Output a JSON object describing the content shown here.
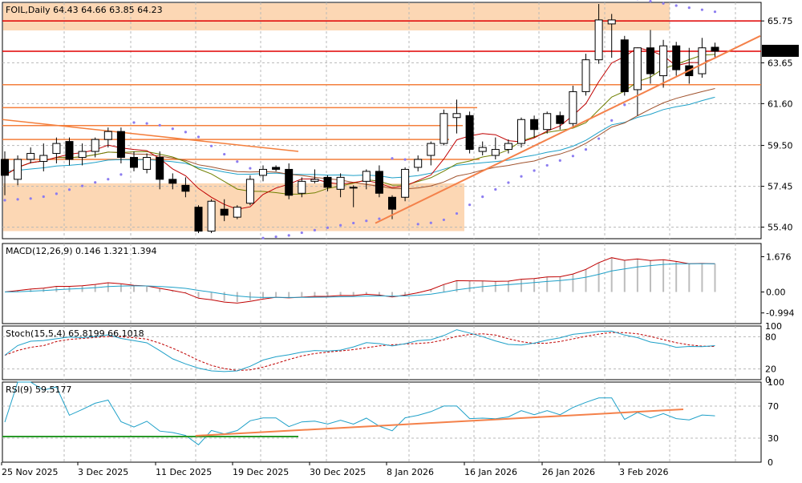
{
  "chart_data": {
    "type": "candlestick",
    "symbol": "FOIL",
    "timeframe": "Daily",
    "header": "FOIL,Daily  64.43 64.66 63.85 64.23",
    "last_price_label": "64.23",
    "x_labels": [
      "25 Nov 2025",
      "3 Dec 2025",
      "11 Dec 2025",
      "19 Dec 2025",
      "30 Dec 2025",
      "8 Jan 2026",
      "16 Jan 2026",
      "26 Jan 2026",
      "3 Feb 2026"
    ],
    "price_axis": {
      "ylim": [
        54.9,
        66.6
      ],
      "ticks": [
        "65.75",
        "63.65",
        "61.60",
        "59.50",
        "57.45",
        "55.40"
      ]
    },
    "candles": [
      {
        "o": 58.8,
        "h": 59.2,
        "l": 57.0,
        "c": 58.0
      },
      {
        "o": 57.8,
        "h": 59.0,
        "l": 57.5,
        "c": 58.8
      },
      {
        "o": 58.8,
        "h": 59.4,
        "l": 58.6,
        "c": 59.1
      },
      {
        "o": 58.7,
        "h": 59.6,
        "l": 58.2,
        "c": 59.0
      },
      {
        "o": 59.1,
        "h": 59.9,
        "l": 58.6,
        "c": 59.6
      },
      {
        "o": 59.7,
        "h": 59.9,
        "l": 58.5,
        "c": 58.8
      },
      {
        "o": 58.9,
        "h": 59.6,
        "l": 58.5,
        "c": 59.2
      },
      {
        "o": 59.2,
        "h": 59.9,
        "l": 58.9,
        "c": 59.8
      },
      {
        "o": 59.8,
        "h": 60.4,
        "l": 59.4,
        "c": 60.2
      },
      {
        "o": 60.2,
        "h": 60.4,
        "l": 58.6,
        "c": 58.9
      },
      {
        "o": 58.9,
        "h": 59.2,
        "l": 58.2,
        "c": 58.4
      },
      {
        "o": 58.3,
        "h": 59.1,
        "l": 58.1,
        "c": 58.9
      },
      {
        "o": 58.9,
        "h": 59.2,
        "l": 57.3,
        "c": 57.8
      },
      {
        "o": 57.8,
        "h": 58.1,
        "l": 57.3,
        "c": 57.6
      },
      {
        "o": 57.5,
        "h": 57.9,
        "l": 56.9,
        "c": 57.2
      },
      {
        "o": 56.4,
        "h": 56.5,
        "l": 55.1,
        "c": 55.2
      },
      {
        "o": 55.2,
        "h": 56.8,
        "l": 55.1,
        "c": 56.7
      },
      {
        "o": 56.3,
        "h": 56.8,
        "l": 55.7,
        "c": 56.0
      },
      {
        "o": 55.9,
        "h": 56.5,
        "l": 55.8,
        "c": 56.4
      },
      {
        "o": 56.6,
        "h": 58.0,
        "l": 56.5,
        "c": 57.8
      },
      {
        "o": 58.0,
        "h": 58.5,
        "l": 57.7,
        "c": 58.3
      },
      {
        "o": 58.4,
        "h": 58.5,
        "l": 58.2,
        "c": 58.3
      },
      {
        "o": 58.3,
        "h": 58.6,
        "l": 56.8,
        "c": 57.0
      },
      {
        "o": 57.1,
        "h": 57.9,
        "l": 56.9,
        "c": 57.7
      },
      {
        "o": 57.7,
        "h": 58.3,
        "l": 57.6,
        "c": 57.8
      },
      {
        "o": 57.9,
        "h": 58.0,
        "l": 57.2,
        "c": 57.4
      },
      {
        "o": 57.3,
        "h": 58.1,
        "l": 56.9,
        "c": 57.9
      },
      {
        "o": 57.4,
        "h": 57.5,
        "l": 56.4,
        "c": 57.4
      },
      {
        "o": 57.7,
        "h": 58.3,
        "l": 57.3,
        "c": 58.2
      },
      {
        "o": 58.2,
        "h": 58.5,
        "l": 56.9,
        "c": 57.1
      },
      {
        "o": 56.9,
        "h": 57.0,
        "l": 55.8,
        "c": 56.3
      },
      {
        "o": 56.9,
        "h": 58.4,
        "l": 56.7,
        "c": 58.3
      },
      {
        "o": 58.4,
        "h": 59.0,
        "l": 58.2,
        "c": 58.8
      },
      {
        "o": 59.0,
        "h": 59.7,
        "l": 58.5,
        "c": 59.6
      },
      {
        "o": 59.6,
        "h": 61.3,
        "l": 59.5,
        "c": 61.1
      },
      {
        "o": 60.9,
        "h": 61.8,
        "l": 60.1,
        "c": 61.1
      },
      {
        "o": 61.0,
        "h": 61.2,
        "l": 59.1,
        "c": 59.3
      },
      {
        "o": 59.2,
        "h": 59.7,
        "l": 59.0,
        "c": 59.4
      },
      {
        "o": 59.0,
        "h": 59.9,
        "l": 58.8,
        "c": 59.3
      },
      {
        "o": 59.3,
        "h": 59.8,
        "l": 59.1,
        "c": 59.6
      },
      {
        "o": 59.6,
        "h": 60.9,
        "l": 59.4,
        "c": 60.8
      },
      {
        "o": 60.8,
        "h": 61.0,
        "l": 59.9,
        "c": 60.3
      },
      {
        "o": 60.3,
        "h": 61.2,
        "l": 60.1,
        "c": 61.1
      },
      {
        "o": 61.0,
        "h": 61.2,
        "l": 60.3,
        "c": 60.6
      },
      {
        "o": 60.6,
        "h": 62.5,
        "l": 60.4,
        "c": 62.2
      },
      {
        "o": 62.2,
        "h": 64.1,
        "l": 62.0,
        "c": 63.8
      },
      {
        "o": 63.8,
        "h": 66.6,
        "l": 63.6,
        "c": 65.8
      },
      {
        "o": 65.6,
        "h": 66.1,
        "l": 63.9,
        "c": 65.8
      },
      {
        "o": 64.8,
        "h": 65.0,
        "l": 62.0,
        "c": 62.2
      },
      {
        "o": 62.3,
        "h": 64.4,
        "l": 61.0,
        "c": 64.4
      },
      {
        "o": 64.4,
        "h": 65.3,
        "l": 62.6,
        "c": 63.1
      },
      {
        "o": 63.0,
        "h": 64.8,
        "l": 62.4,
        "c": 64.5
      },
      {
        "o": 64.5,
        "h": 64.7,
        "l": 63.0,
        "c": 63.3
      },
      {
        "o": 63.5,
        "h": 64.4,
        "l": 62.6,
        "c": 63.0
      },
      {
        "o": 63.1,
        "h": 64.9,
        "l": 62.9,
        "c": 64.4
      },
      {
        "o": 64.43,
        "h": 64.66,
        "l": 63.85,
        "c": 64.23
      }
    ],
    "horizontal_levels": [
      65.75,
      64.23,
      62.55
    ],
    "support_resistance_lines": [
      61.4,
      60.5,
      59.8,
      58.8
    ],
    "indicators": [
      {
        "name": "MACD(12,26,9)",
        "label": "MACD(12,26,9) 0.146 1.321 1.394",
        "ticks": [
          "1.676",
          "0.00",
          "-0.994"
        ],
        "range": [
          -1.5,
          2.3
        ]
      },
      {
        "name": "Stoch(15,5,4)",
        "label": "Stoch(15,5,4) 65.8199 66.1018",
        "ticks": [
          "100",
          "80",
          "20",
          "0"
        ],
        "range": [
          0,
          100
        ]
      },
      {
        "name": "RSI(9)",
        "label": "RSI(9) 59.5177",
        "ticks": [
          "100",
          "70",
          "30",
          "0"
        ],
        "range": [
          0,
          100
        ]
      }
    ],
    "colors": {
      "bull": "#ffffff",
      "bear": "#000000",
      "grid": "#b8b8b8",
      "highlight": "#fcd7b4",
      "level_red": "#e00000",
      "level_orange": "#f47f3c",
      "trend_orange": "#f4814a",
      "ma_fast": "#c00000",
      "ma_mid": "#6f7f00",
      "ma_slow": "#a0522d",
      "ma_long": "#1ea0c8",
      "sar": "#8c7cf0",
      "macd_line": "#c00000",
      "macd_signal": "#1ea0c8",
      "macd_hist": "#bdbdbd",
      "stoch_k": "#1ea0c8",
      "stoch_d": "#c00000",
      "rsi": "#1ea0c8",
      "rsi_green": "#2a9a2a"
    }
  }
}
